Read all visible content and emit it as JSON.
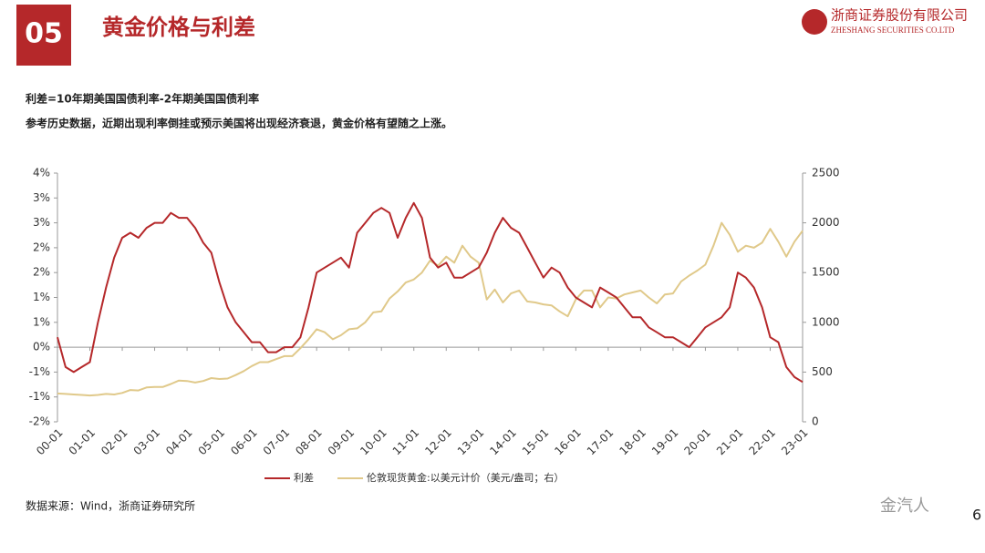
{
  "header": {
    "number": "05",
    "title": "黄金价格与利差",
    "company": "浙商证券股份有限公司",
    "company_en": "ZHESHANG SECURITIES CO.LTD"
  },
  "notes": [
    "利差=10年期美国国债利率-2年期美国国债利率",
    "参考历史数据，近期出现利率倒挂或预示美国将出现经济衰退，黄金价格有望随之上涨。"
  ],
  "source": "数据来源：Wind，浙商证券研究所",
  "watermark": "金汽人",
  "page_number": "6",
  "chart_data": {
    "type": "line",
    "categories": [
      "00-01",
      null,
      null,
      null,
      "01-01",
      null,
      null,
      null,
      "02-01",
      null,
      null,
      null,
      "03-01",
      null,
      null,
      null,
      "04-01",
      null,
      null,
      null,
      "05-01",
      null,
      null,
      null,
      "06-01",
      null,
      null,
      null,
      "07-01",
      null,
      null,
      null,
      "08-01",
      null,
      null,
      null,
      "09-01",
      null,
      null,
      null,
      "10-01",
      null,
      null,
      null,
      "11-01",
      null,
      null,
      null,
      "12-01",
      null,
      null,
      null,
      "13-01",
      null,
      null,
      null,
      "14-01",
      null,
      null,
      null,
      "15-01",
      null,
      null,
      null,
      "16-01",
      null,
      null,
      null,
      "17-01",
      null,
      null,
      null,
      "18-01",
      null,
      null,
      null,
      "19-01",
      null,
      null,
      null,
      "20-01",
      null,
      null,
      null,
      "21-01",
      null,
      null,
      null,
      "22-01",
      null,
      null,
      null,
      "23-01"
    ],
    "series": [
      {
        "name": "利差",
        "color": "#b5282a",
        "values": [
          0.2,
          -0.4,
          -0.5,
          -0.4,
          -0.3,
          0.5,
          1.2,
          1.8,
          2.2,
          2.3,
          2.2,
          2.4,
          2.5,
          2.5,
          2.7,
          2.6,
          2.6,
          2.4,
          2.1,
          1.9,
          1.3,
          0.8,
          0.5,
          0.3,
          0.1,
          0.1,
          -0.1,
          -0.1,
          0.0,
          0.0,
          0.2,
          0.8,
          1.5,
          1.6,
          1.7,
          1.8,
          1.6,
          2.3,
          2.5,
          2.7,
          2.8,
          2.7,
          2.2,
          2.6,
          2.9,
          2.6,
          1.8,
          1.6,
          1.7,
          1.4,
          1.4,
          1.5,
          1.6,
          1.9,
          2.3,
          2.6,
          2.4,
          2.3,
          2.0,
          1.7,
          1.4,
          1.6,
          1.5,
          1.2,
          1.0,
          0.9,
          0.8,
          1.2,
          1.1,
          1.0,
          0.8,
          0.6,
          0.6,
          0.4,
          0.3,
          0.2,
          0.2,
          0.1,
          0.0,
          0.2,
          0.4,
          0.5,
          0.6,
          0.8,
          1.5,
          1.4,
          1.2,
          0.8,
          0.2,
          0.1,
          -0.4,
          -0.6,
          -0.7
        ]
      },
      {
        "name": "伦敦现货黄金:以美元计价（美元/盎司；右）",
        "color": "#e0c98a",
        "axis": "y2",
        "values": [
          285,
          280,
          275,
          270,
          265,
          270,
          280,
          275,
          290,
          320,
          315,
          345,
          350,
          350,
          380,
          415,
          410,
          395,
          410,
          440,
          430,
          435,
          470,
          510,
          560,
          600,
          600,
          630,
          660,
          660,
          740,
          830,
          930,
          900,
          830,
          870,
          930,
          940,
          1000,
          1100,
          1110,
          1240,
          1310,
          1400,
          1430,
          1500,
          1620,
          1570,
          1660,
          1600,
          1770,
          1660,
          1600,
          1230,
          1330,
          1200,
          1290,
          1320,
          1210,
          1200,
          1180,
          1170,
          1110,
          1060,
          1230,
          1320,
          1320,
          1150,
          1250,
          1240,
          1280,
          1300,
          1320,
          1250,
          1190,
          1280,
          1290,
          1410,
          1470,
          1520,
          1580,
          1770,
          2000,
          1880,
          1710,
          1770,
          1750,
          1800,
          1940,
          1810,
          1660,
          1810,
          1920
        ]
      }
    ],
    "ylim": [
      -1.5,
      3.5
    ],
    "yticks": [
      {
        "value": -1.5,
        "label": "-2%"
      },
      {
        "value": -1,
        "label": "-1%"
      },
      {
        "value": -0.5,
        "label": "-1%"
      },
      {
        "value": 0,
        "label": "0%"
      },
      {
        "value": 0.5,
        "label": "1%"
      },
      {
        "value": 1,
        "label": "1%"
      },
      {
        "value": 1.5,
        "label": "2%"
      },
      {
        "value": 2,
        "label": "2%"
      },
      {
        "value": 2.5,
        "label": "3%"
      },
      {
        "value": 3,
        "label": "3%"
      },
      {
        "value": 3.5,
        "label": "4%"
      }
    ],
    "y2lim": [
      0,
      2500
    ],
    "y2ticks": [
      0,
      500,
      1000,
      1500,
      2000,
      2500
    ],
    "grid": false
  }
}
